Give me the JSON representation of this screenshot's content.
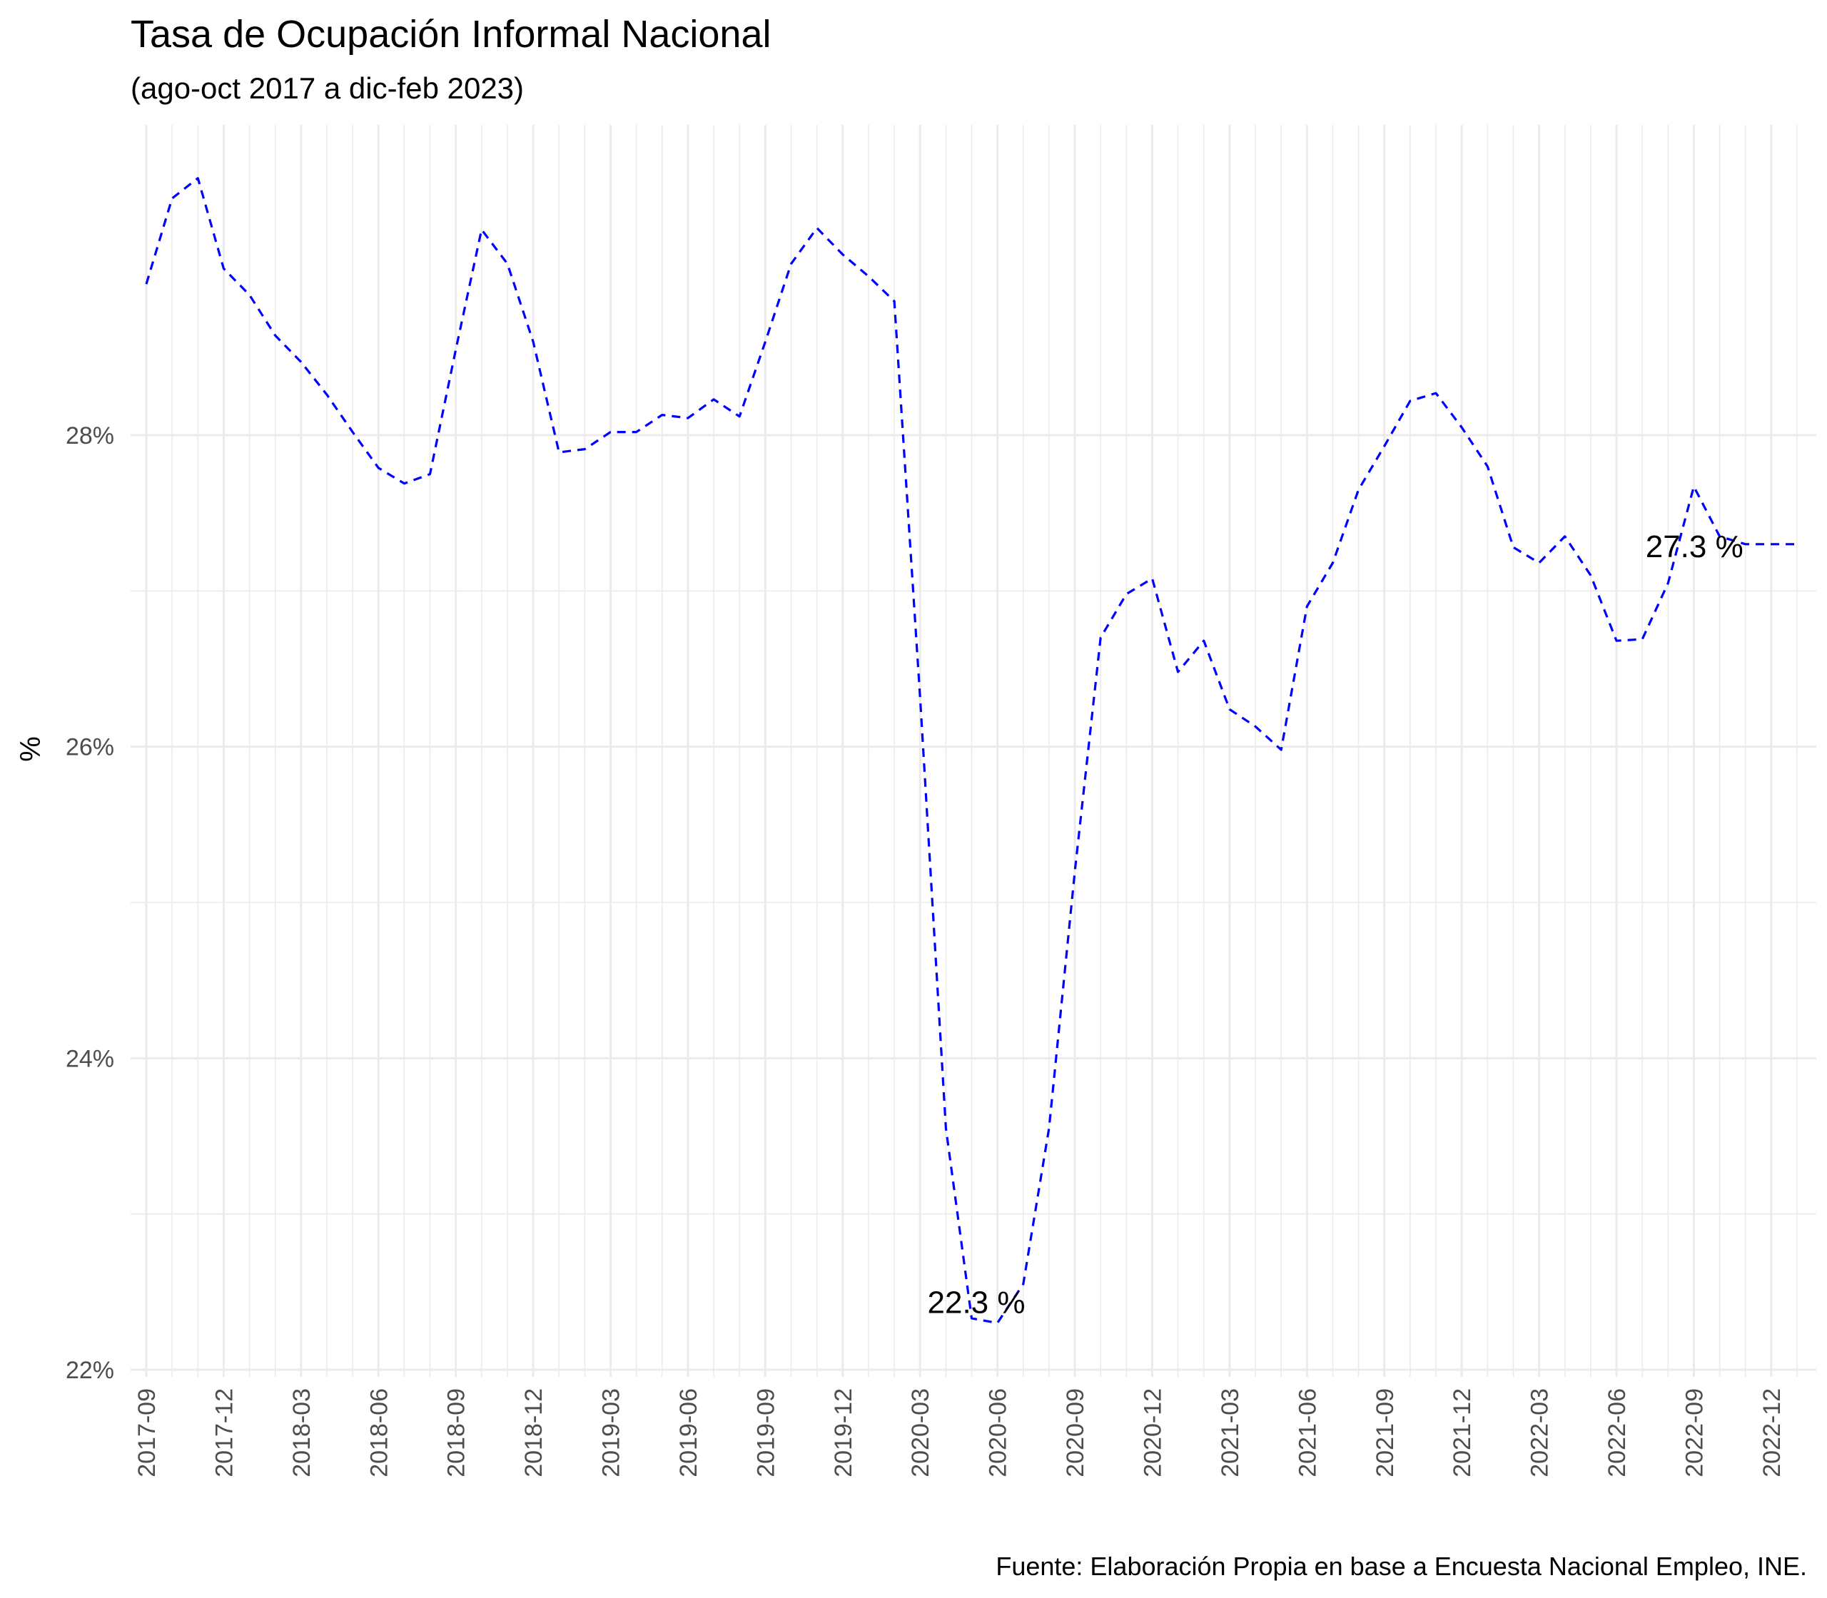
{
  "chart_data": {
    "type": "line",
    "title": "Tasa de Ocupación Informal Nacional",
    "subtitle": "(ago-oct 2017 a dic-feb 2023)",
    "ylabel": "%",
    "caption": "Fuente: Elaboración Propia en base a Encuesta Nacional Empleo, INE.",
    "ylim": [
      22,
      28.8
    ],
    "y_ticks": [
      22,
      24,
      26,
      28
    ],
    "y_tick_labels": [
      "22%",
      "24%",
      "26%",
      "28%"
    ],
    "x_tick_labels": [
      "2017-09",
      "2017-12",
      "2018-03",
      "2018-06",
      "2018-09",
      "2018-12",
      "2019-03",
      "2019-06",
      "2019-09",
      "2019-12",
      "2020-03",
      "2020-06",
      "2020-09",
      "2020-12",
      "2021-03",
      "2021-06",
      "2021-09",
      "2021-12",
      "2022-03",
      "2022-06",
      "2022-09",
      "2022-12"
    ],
    "grid": true,
    "line_color": "#0000ff",
    "line_style": "dashed",
    "x": [
      "2017-09",
      "2017-10",
      "2017-11",
      "2017-12",
      "2018-01",
      "2018-02",
      "2018-03",
      "2018-04",
      "2018-05",
      "2018-06",
      "2018-07",
      "2018-08",
      "2018-09",
      "2018-10",
      "2018-11",
      "2018-12",
      "2019-01",
      "2019-02",
      "2019-03",
      "2019-04",
      "2019-05",
      "2019-06",
      "2019-07",
      "2019-08",
      "2019-09",
      "2019-10",
      "2019-11",
      "2019-12",
      "2020-01",
      "2020-02",
      "2020-03",
      "2020-04",
      "2020-05",
      "2020-06",
      "2020-07",
      "2020-08",
      "2020-09",
      "2020-10",
      "2020-11",
      "2020-12",
      "2021-01",
      "2021-02",
      "2021-03",
      "2021-04",
      "2021-05",
      "2021-06",
      "2021-07",
      "2021-08",
      "2021-09",
      "2021-10",
      "2021-11",
      "2021-12",
      "2022-01",
      "2022-02",
      "2022-03",
      "2022-04",
      "2022-05",
      "2022-06",
      "2022-07",
      "2022-08",
      "2022-09",
      "2022-10",
      "2022-11",
      "2022-12",
      "2023-01"
    ],
    "series": [
      {
        "values": [
          28.97,
          29.52,
          29.65,
          29.07,
          28.9,
          28.64,
          28.47,
          28.26,
          28.02,
          27.79,
          27.69,
          27.75,
          28.55,
          29.32,
          29.1,
          28.6,
          27.89,
          27.91,
          28.02,
          28.02,
          28.13,
          28.11,
          28.23,
          28.12,
          28.6,
          29.1,
          29.33,
          29.16,
          29.02,
          28.86,
          26.32,
          23.55,
          22.33,
          22.3,
          22.55,
          23.55,
          25.2,
          26.7,
          26.98,
          27.08,
          26.48,
          26.68,
          26.24,
          26.13,
          25.98,
          26.9,
          27.18,
          27.65,
          27.93,
          28.22,
          28.27,
          28.05,
          27.8,
          27.28,
          27.18,
          27.35,
          27.1,
          26.68,
          26.69,
          27.05,
          27.67,
          27.35,
          27.3,
          27.3,
          27.3
        ]
      }
    ],
    "annotations": [
      {
        "x": "2020-05",
        "y": 22.3,
        "text": "22.3 %"
      },
      {
        "x": "2022-11",
        "y": 27.3,
        "text": "27.3 %"
      }
    ]
  }
}
